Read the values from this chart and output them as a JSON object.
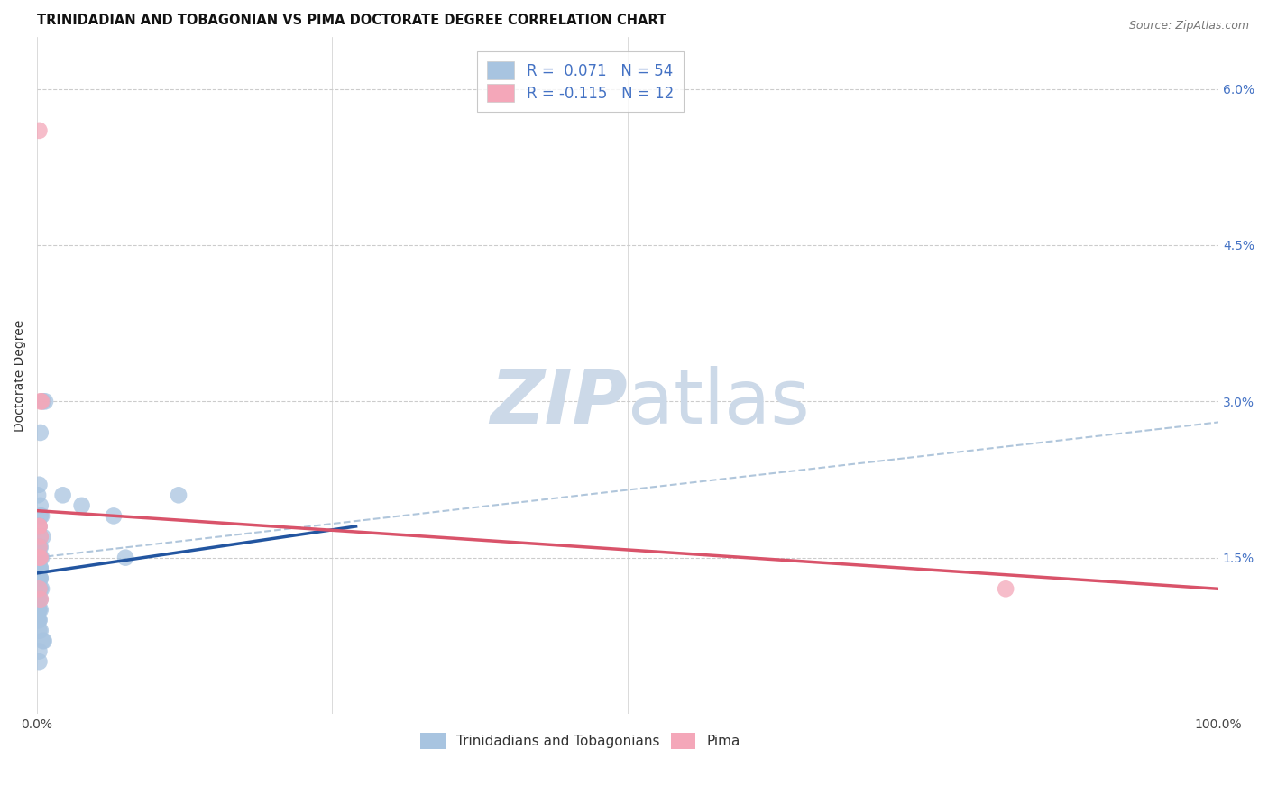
{
  "title": "TRINIDADIAN AND TOBAGONIAN VS PIMA DOCTORATE DEGREE CORRELATION CHART",
  "source": "Source: ZipAtlas.com",
  "ylabel": "Doctorate Degree",
  "xlim": [
    0.0,
    1.0
  ],
  "ylim": [
    0.0,
    0.065
  ],
  "yticks": [
    0.0,
    0.015,
    0.03,
    0.045,
    0.06
  ],
  "ytick_labels_right": [
    "",
    "1.5%",
    "3.0%",
    "4.5%",
    "6.0%"
  ],
  "xticks": [
    0.0,
    0.25,
    0.5,
    0.75,
    1.0
  ],
  "xtick_labels": [
    "0.0%",
    "",
    "",
    "",
    "100.0%"
  ],
  "legend_labels": [
    "Trinidadians and Tobagonians",
    "Pima"
  ],
  "R_blue": 0.071,
  "N_blue": 54,
  "R_pink": -0.115,
  "N_pink": 12,
  "blue_color": "#a8c4e0",
  "pink_color": "#f4a7b9",
  "line_blue_color": "#2255a0",
  "line_pink_color": "#d9536a",
  "grid_color": "#cccccc",
  "watermark_color": "#ccd9e8",
  "blue_points_x": [
    0.005,
    0.007,
    0.003,
    0.002,
    0.001,
    0.003,
    0.004,
    0.003,
    0.002,
    0.002,
    0.005,
    0.003,
    0.002,
    0.002,
    0.002,
    0.003,
    0.003,
    0.004,
    0.002,
    0.002,
    0.001,
    0.003,
    0.002,
    0.002,
    0.002,
    0.003,
    0.003,
    0.002,
    0.004,
    0.002,
    0.003,
    0.003,
    0.002,
    0.001,
    0.002,
    0.002,
    0.003,
    0.001,
    0.002,
    0.001,
    0.001,
    0.002,
    0.002,
    0.003,
    0.022,
    0.038,
    0.065,
    0.12,
    0.075,
    0.005,
    0.006,
    0.002,
    0.002,
    0.003
  ],
  "blue_points_y": [
    0.03,
    0.03,
    0.027,
    0.022,
    0.021,
    0.02,
    0.019,
    0.019,
    0.018,
    0.018,
    0.017,
    0.017,
    0.016,
    0.016,
    0.016,
    0.016,
    0.015,
    0.015,
    0.015,
    0.015,
    0.015,
    0.014,
    0.014,
    0.014,
    0.013,
    0.013,
    0.013,
    0.013,
    0.012,
    0.012,
    0.012,
    0.011,
    0.011,
    0.011,
    0.01,
    0.01,
    0.01,
    0.01,
    0.009,
    0.009,
    0.009,
    0.009,
    0.008,
    0.008,
    0.021,
    0.02,
    0.019,
    0.021,
    0.015,
    0.007,
    0.007,
    0.006,
    0.005,
    0.014
  ],
  "pink_points_x": [
    0.002,
    0.004,
    0.003,
    0.002,
    0.002,
    0.003,
    0.002,
    0.002,
    0.003,
    0.002,
    0.82,
    0.003
  ],
  "pink_points_y": [
    0.056,
    0.03,
    0.03,
    0.018,
    0.018,
    0.017,
    0.016,
    0.015,
    0.015,
    0.012,
    0.012,
    0.011
  ],
  "blue_line_x": [
    0.0,
    0.27
  ],
  "blue_line_y": [
    0.0135,
    0.018
  ],
  "pink_line_x": [
    0.0,
    1.0
  ],
  "pink_line_y": [
    0.0195,
    0.012
  ],
  "dash_line_x": [
    0.0,
    1.0
  ],
  "dash_line_y": [
    0.015,
    0.028
  ],
  "background_color": "#ffffff",
  "title_fontsize": 10.5,
  "axis_label_fontsize": 10,
  "tick_fontsize": 10,
  "right_tick_color": "#4472c4",
  "source_color": "#777777"
}
